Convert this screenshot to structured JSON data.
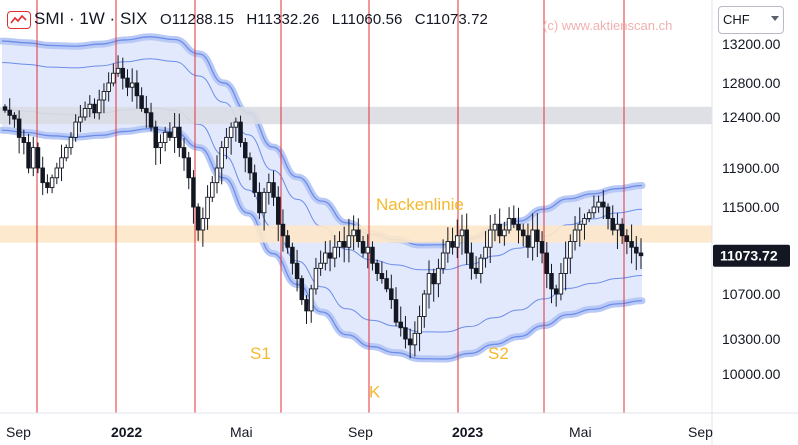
{
  "header": {
    "symbol": "SMI · 1W · SIX",
    "open": "O11288.15",
    "high": "H11332.26",
    "low": "L11060.56",
    "close": "C11073.72",
    "watermark": "(c) www.aktienscan.ch",
    "currency": "CHF"
  },
  "colors": {
    "band": "#6c8dea",
    "band_fill": "#dde5fb",
    "vline": "#e0303a",
    "annotation": "#f5b82e",
    "resistance_zone": "#dadde3",
    "neckline_zone": "#fde7c8",
    "candle": "#131722",
    "price_tag": "#131722"
  },
  "chart_data": {
    "type": "candlestick",
    "x_ticks": [
      "Sep",
      "2022",
      "Mai",
      "Sep",
      "2023",
      "Mai",
      "Sep"
    ],
    "y_ticks": [
      10000,
      10300,
      10700,
      11100,
      11500,
      11900,
      12400,
      12800,
      13200
    ],
    "y_tick_labels": [
      "10000.00",
      "10300.00",
      "10700.00",
      "",
      "11500.00",
      "11900.00",
      "12400.00",
      "12800.00",
      "13200.00"
    ],
    "ylim": [
      9750,
      13400
    ],
    "last_price": "11073.72",
    "annotations": [
      {
        "label": "Nackenlinie",
        "x": 12,
        "y": 11520
      },
      {
        "label": "S1",
        "x": 17,
        "y": 10170
      },
      {
        "label": "K",
        "x": 24,
        "y": 9840
      },
      {
        "label": "S2",
        "x": 33,
        "y": 10170
      }
    ],
    "zones": [
      {
        "name": "resistance",
        "from": 12330,
        "to": 12520
      },
      {
        "name": "neckline",
        "from": 11190,
        "to": 11340
      }
    ],
    "closes": [
      12480,
      12420,
      12380,
      12200,
      12150,
      11900,
      12100,
      11900,
      11750,
      11700,
      11800,
      11900,
      12000,
      12100,
      12200,
      12350,
      12400,
      12500,
      12550,
      12450,
      12600,
      12700,
      12800,
      12900,
      12950,
      12850,
      12750,
      12800,
      12650,
      12500,
      12450,
      12300,
      12100,
      12150,
      12250,
      12200,
      12300,
      12100,
      12000,
      11800,
      11500,
      11300,
      11400,
      11600,
      11750,
      11900,
      12100,
      12200,
      12300,
      12350,
      12150,
      12000,
      11850,
      11650,
      11450,
      11650,
      11750,
      11600,
      11350,
      11250,
      11150,
      11000,
      10850,
      10650,
      10550,
      10750,
      10950,
      11000,
      11100,
      11050,
      11150,
      11200,
      11150,
      11250,
      11300,
      11200,
      11100,
      11150,
      11000,
      10900,
      10850,
      10750,
      10650,
      10450,
      10400,
      10300,
      10250,
      10350,
      10500,
      10700,
      10900,
      10800,
      10950,
      11100,
      11200,
      11150,
      11250,
      11300,
      11100,
      10950,
      10900,
      11050,
      11150,
      11300,
      11350,
      11250,
      11300,
      11400,
      11350,
      11300,
      11250,
      11150,
      11300,
      11200,
      11100,
      10900,
      10750,
      10700,
      10900,
      11050,
      11200,
      11300,
      11350,
      11400,
      11450,
      11500,
      11550,
      11500,
      11400,
      11300,
      11350,
      11250,
      11200,
      11150,
      11100,
      11073.72
    ],
    "centers": [
      12750,
      12730,
      12700,
      12690,
      12710,
      12750,
      12780,
      12750,
      12600,
      12300,
      11950,
      11600,
      11300,
      11050,
      10850,
      10750,
      10700,
      10650,
      10650,
      10700,
      10780,
      10850,
      10950,
      11050,
      11100,
      11150,
      11180
    ],
    "band_inner": [
      260,
      300
    ],
    "band_outer": [
      480,
      540
    ]
  }
}
